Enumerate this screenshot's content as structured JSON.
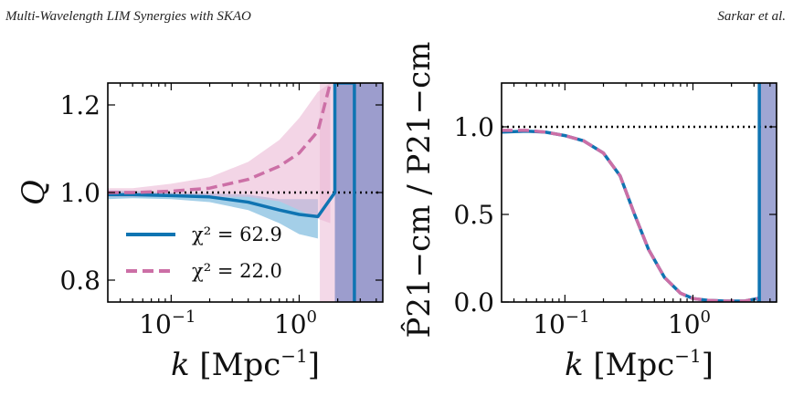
{
  "header": {
    "left": "Multi-Wavelength LIM Synergies with SKAO",
    "right": "Sarkar et al."
  },
  "colors": {
    "blue": "#0f74b2",
    "pink": "#cc6fa6",
    "blue_band": "#5aa7d6",
    "pink_band": "#e9b3d2"
  },
  "chart_data": [
    {
      "type": "line",
      "ylabel": "Q",
      "xlabel": "k [Mpc^-1]",
      "xscale": "log",
      "xlim": [
        0.032,
        4.5
      ],
      "ylim": [
        0.75,
        1.25
      ],
      "xticks": [
        {
          "v": 0.1,
          "label": "10^-1"
        },
        {
          "v": 1,
          "label": "10^0"
        }
      ],
      "yticks": [
        {
          "v": 0.8,
          "label": "0.8"
        },
        {
          "v": 1.0,
          "label": "1.0"
        },
        {
          "v": 1.2,
          "label": "1.2"
        }
      ],
      "reference_line": 1.0,
      "legend": [
        "χ² = 62.9",
        "χ² = 22.0"
      ],
      "series": [
        {
          "color": "blue",
          "style": "solid",
          "x": [
            0.032,
            0.05,
            0.1,
            0.2,
            0.4,
            0.7,
            1.0,
            1.4,
            1.9,
            1.9,
            2.7,
            2.7
          ],
          "y": [
            0.995,
            0.995,
            0.993,
            0.99,
            0.978,
            0.96,
            0.95,
            0.945,
            1.0,
            1.25,
            1.25,
            0.75
          ],
          "band_lo": [
            0.985,
            0.987,
            0.985,
            0.978,
            0.96,
            0.93,
            0.905,
            0.895
          ],
          "band_hi": [
            1.005,
            1.004,
            1.0,
            0.998,
            0.995,
            0.985,
            0.985,
            0.985
          ]
        },
        {
          "color": "pink",
          "style": "dashed",
          "x": [
            0.032,
            0.05,
            0.1,
            0.2,
            0.4,
            0.7,
            1.0,
            1.4,
            1.75
          ],
          "y": [
            1.0,
            1.0,
            1.003,
            1.01,
            1.03,
            1.06,
            1.09,
            1.14,
            1.25
          ],
          "band_lo": [
            0.99,
            0.99,
            0.99,
            0.99,
            0.99,
            0.98,
            0.96,
            0.94,
            0.93
          ],
          "band_hi": [
            1.01,
            1.01,
            1.02,
            1.035,
            1.07,
            1.12,
            1.17,
            1.23,
            1.25
          ]
        }
      ]
    },
    {
      "type": "line",
      "ylabel": "P̂21−cm / P21−cm",
      "xlabel": "k [Mpc^-1]",
      "xscale": "log",
      "xlim": [
        0.032,
        4.5
      ],
      "ylim": [
        0.0,
        1.25
      ],
      "xticks": [
        {
          "v": 0.1,
          "label": "10^-1"
        },
        {
          "v": 1,
          "label": "10^0"
        }
      ],
      "yticks": [
        {
          "v": 0.0,
          "label": "0.0"
        },
        {
          "v": 0.5,
          "label": "0.5"
        },
        {
          "v": 1.0,
          "label": "1.0"
        }
      ],
      "reference_line": 1.0,
      "series": [
        {
          "color": "blue",
          "style": "solid",
          "x": [
            0.032,
            0.05,
            0.07,
            0.1,
            0.14,
            0.2,
            0.27,
            0.35,
            0.45,
            0.6,
            0.8,
            1.0,
            1.3,
            1.8,
            2.5,
            3.2,
            3.3,
            3.3
          ],
          "y": [
            0.97,
            0.975,
            0.97,
            0.95,
            0.92,
            0.85,
            0.72,
            0.5,
            0.3,
            0.14,
            0.05,
            0.02,
            0.01,
            0.005,
            0.005,
            0.02,
            0.0,
            1.25
          ]
        },
        {
          "color": "pink",
          "style": "dashed",
          "x": [
            0.032,
            0.05,
            0.07,
            0.1,
            0.14,
            0.2,
            0.27,
            0.35,
            0.45,
            0.6,
            0.8,
            1.0,
            1.3,
            1.8,
            2.5,
            3.2
          ],
          "y": [
            0.98,
            0.98,
            0.97,
            0.95,
            0.92,
            0.85,
            0.72,
            0.5,
            0.3,
            0.14,
            0.05,
            0.02,
            0.01,
            0.005,
            0.005,
            0.02
          ]
        }
      ]
    }
  ]
}
